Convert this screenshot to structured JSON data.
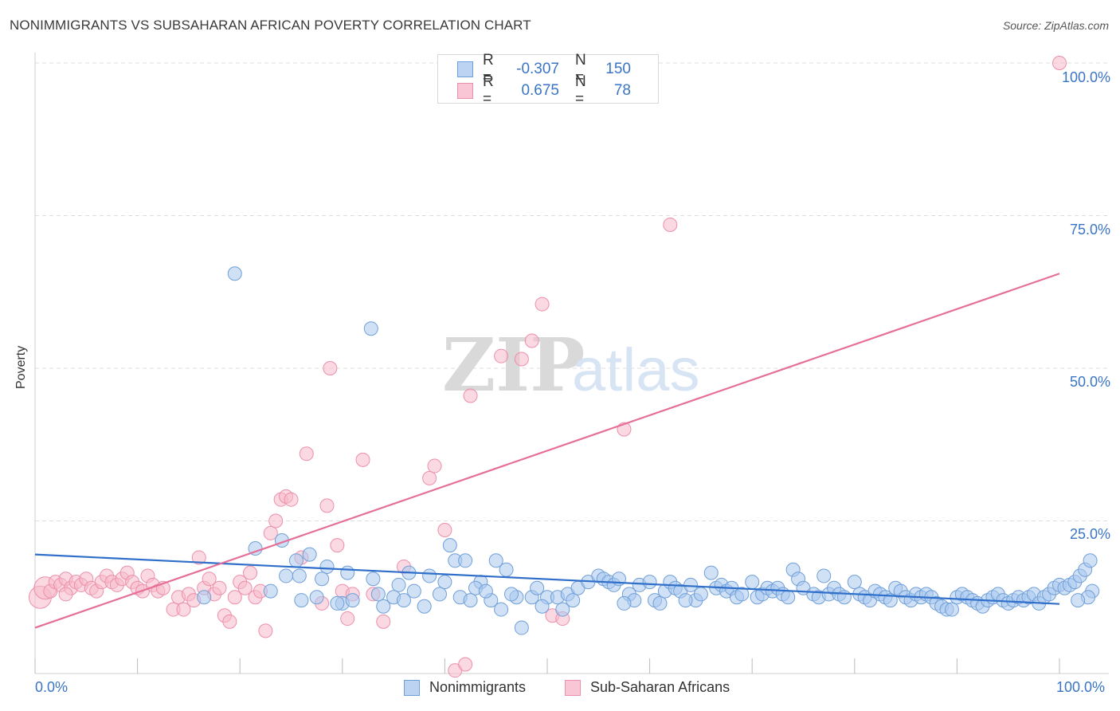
{
  "title": "NONIMMIGRANTS VS SUBSAHARAN AFRICAN POVERTY CORRELATION CHART",
  "source": "Source: ZipAtlas.com",
  "watermark": {
    "zip": "ZIP",
    "atlas": "atlas"
  },
  "colors": {
    "blue_fill": "#a9c8ef",
    "blue_stroke": "#6f9fd8",
    "blue_line": "#2f6fca",
    "pink_fill": "#f7b9cb",
    "pink_stroke": "#ec8fab",
    "pink_line": "#e56f98",
    "axis_text": "#3a75c4",
    "grid": "#dddddd"
  },
  "legend": {
    "rows": [
      {
        "r_label": "R =",
        "r_value": "-0.307",
        "n_label": "N =",
        "n_value": "150"
      },
      {
        "r_label": "R =",
        "r_value": "0.675",
        "n_label": "N =",
        "n_value": "78"
      }
    ]
  },
  "bottom_legend": {
    "series1": "Nonimmigrants",
    "series2": "Sub-Saharan Africans"
  },
  "axes": {
    "x_min_label": "0.0%",
    "x_max_label": "100.0%",
    "y_ticks": [
      "100.0%",
      "75.0%",
      "50.0%",
      "25.0%"
    ],
    "ylabel": "Poverty"
  },
  "chart_data": {
    "type": "scatter",
    "title": "NONIMMIGRANTS VS SUBSAHARAN AFRICAN POVERTY CORRELATION CHART",
    "xlabel": "",
    "ylabel": "Poverty",
    "xlim": [
      0,
      100
    ],
    "ylim": [
      0,
      100
    ],
    "grid": true,
    "legend_position": "bottom",
    "series": [
      {
        "name": "Nonimmigrants",
        "r": -0.307,
        "n": 150,
        "trend": [
          [
            0,
            19.5
          ],
          [
            100,
            11.4
          ]
        ],
        "points": [
          [
            19.5,
            65.5
          ],
          [
            32.8,
            56.5
          ],
          [
            21.5,
            20.5
          ],
          [
            24.1,
            21.8
          ],
          [
            25.5,
            18.5
          ],
          [
            26.8,
            19.5
          ],
          [
            28.5,
            17.5
          ],
          [
            24.5,
            16.0
          ],
          [
            25.8,
            16.0
          ],
          [
            28.0,
            15.5
          ],
          [
            30.5,
            16.5
          ],
          [
            33.0,
            15.5
          ],
          [
            35.5,
            14.5
          ],
          [
            36.5,
            16.5
          ],
          [
            38.5,
            16.0
          ],
          [
            40.0,
            15.0
          ],
          [
            41.0,
            18.5
          ],
          [
            42.0,
            18.5
          ],
          [
            43.5,
            15.0
          ],
          [
            45.0,
            18.5
          ],
          [
            46.0,
            17.0
          ],
          [
            40.5,
            21.0
          ],
          [
            16.5,
            12.5
          ],
          [
            27.5,
            12.5
          ],
          [
            30.0,
            11.5
          ],
          [
            34.0,
            11.0
          ],
          [
            35.0,
            12.5
          ],
          [
            36.0,
            12.0
          ],
          [
            38.0,
            11.0
          ],
          [
            39.5,
            13.0
          ],
          [
            41.5,
            12.5
          ],
          [
            43.0,
            14.0
          ],
          [
            44.5,
            12.0
          ],
          [
            45.5,
            10.5
          ],
          [
            47.0,
            12.5
          ],
          [
            47.5,
            7.5
          ],
          [
            48.5,
            12.5
          ],
          [
            49.0,
            14.0
          ],
          [
            50.0,
            12.5
          ],
          [
            51.0,
            12.5
          ],
          [
            51.5,
            10.5
          ],
          [
            52.0,
            13.0
          ],
          [
            53.0,
            14.0
          ],
          [
            54.0,
            15.0
          ],
          [
            55.0,
            16.0
          ],
          [
            55.5,
            15.5
          ],
          [
            56.0,
            15.0
          ],
          [
            56.5,
            14.5
          ],
          [
            57.0,
            15.5
          ],
          [
            58.0,
            13.0
          ],
          [
            58.5,
            12.0
          ],
          [
            59.0,
            14.5
          ],
          [
            60.0,
            15.0
          ],
          [
            60.5,
            12.0
          ],
          [
            61.0,
            11.5
          ],
          [
            61.5,
            13.5
          ],
          [
            62.0,
            15.0
          ],
          [
            62.5,
            14.0
          ],
          [
            63.0,
            13.5
          ],
          [
            64.0,
            14.5
          ],
          [
            64.5,
            12.0
          ],
          [
            65.0,
            13.0
          ],
          [
            66.0,
            16.5
          ],
          [
            66.5,
            14.0
          ],
          [
            67.0,
            14.5
          ],
          [
            67.5,
            13.5
          ],
          [
            68.0,
            14.0
          ],
          [
            68.5,
            12.5
          ],
          [
            69.0,
            13.0
          ],
          [
            70.0,
            15.0
          ],
          [
            70.5,
            12.5
          ],
          [
            71.0,
            13.0
          ],
          [
            71.5,
            14.0
          ],
          [
            72.0,
            13.5
          ],
          [
            72.5,
            14.0
          ],
          [
            73.0,
            13.0
          ],
          [
            74.0,
            17.0
          ],
          [
            74.5,
            15.5
          ],
          [
            75.0,
            14.0
          ],
          [
            76.0,
            13.0
          ],
          [
            76.5,
            12.5
          ],
          [
            77.0,
            16.0
          ],
          [
            77.5,
            13.0
          ],
          [
            78.0,
            14.0
          ],
          [
            78.5,
            13.0
          ],
          [
            79.0,
            12.5
          ],
          [
            80.0,
            15.0
          ],
          [
            80.5,
            13.0
          ],
          [
            81.0,
            12.5
          ],
          [
            81.5,
            12.0
          ],
          [
            82.0,
            13.5
          ],
          [
            82.5,
            13.0
          ],
          [
            83.0,
            12.5
          ],
          [
            83.5,
            12.0
          ],
          [
            84.0,
            14.0
          ],
          [
            84.5,
            13.5
          ],
          [
            85.0,
            12.5
          ],
          [
            85.5,
            12.0
          ],
          [
            86.0,
            13.0
          ],
          [
            86.5,
            12.5
          ],
          [
            87.0,
            13.0
          ],
          [
            87.5,
            12.5
          ],
          [
            88.0,
            11.5
          ],
          [
            88.5,
            11.0
          ],
          [
            89.0,
            10.5
          ],
          [
            89.5,
            10.5
          ],
          [
            90.0,
            12.5
          ],
          [
            90.5,
            13.0
          ],
          [
            91.0,
            12.5
          ],
          [
            91.5,
            12.0
          ],
          [
            92.0,
            11.5
          ],
          [
            92.5,
            11.0
          ],
          [
            93.0,
            12.0
          ],
          [
            93.5,
            12.5
          ],
          [
            94.0,
            13.0
          ],
          [
            94.5,
            12.0
          ],
          [
            95.0,
            11.5
          ],
          [
            95.5,
            12.0
          ],
          [
            96.0,
            12.5
          ],
          [
            96.5,
            12.0
          ],
          [
            97.0,
            12.5
          ],
          [
            97.5,
            13.0
          ],
          [
            98.0,
            11.5
          ],
          [
            98.5,
            12.5
          ],
          [
            99.0,
            13.0
          ],
          [
            99.5,
            14.0
          ],
          [
            100.0,
            14.5
          ],
          [
            100.5,
            14.0
          ],
          [
            101.0,
            14.5
          ],
          [
            101.5,
            15.0
          ],
          [
            102.0,
            16.0
          ],
          [
            102.5,
            17.0
          ],
          [
            103.0,
            18.5
          ],
          [
            103.2,
            13.5
          ],
          [
            102.8,
            12.5
          ],
          [
            101.8,
            12.0
          ],
          [
            73.5,
            12.5
          ],
          [
            63.5,
            12.0
          ],
          [
            57.5,
            11.5
          ],
          [
            52.5,
            12.0
          ],
          [
            49.5,
            11.0
          ],
          [
            46.5,
            13.0
          ],
          [
            44.0,
            13.5
          ],
          [
            42.5,
            12.0
          ],
          [
            37.0,
            13.5
          ],
          [
            33.5,
            13.0
          ],
          [
            31.0,
            12.0
          ],
          [
            29.5,
            11.5
          ],
          [
            26.0,
            12.0
          ],
          [
            23.0,
            13.5
          ]
        ]
      },
      {
        "name": "Sub-Saharan Africans",
        "r": 0.675,
        "n": 78,
        "trend": [
          [
            0,
            7.5
          ],
          [
            100,
            65.5
          ]
        ],
        "points": [
          [
            0.5,
            12.5
          ],
          [
            1.0,
            14.0
          ],
          [
            1.5,
            13.5
          ],
          [
            2.0,
            15.0
          ],
          [
            2.5,
            14.5
          ],
          [
            3.0,
            15.5
          ],
          [
            3.5,
            14.0
          ],
          [
            4.0,
            15.0
          ],
          [
            4.5,
            14.5
          ],
          [
            5.0,
            15.5
          ],
          [
            5.5,
            14.0
          ],
          [
            6.0,
            13.5
          ],
          [
            6.5,
            15.0
          ],
          [
            7.0,
            16.0
          ],
          [
            7.5,
            15.0
          ],
          [
            8.0,
            14.5
          ],
          [
            8.5,
            15.5
          ],
          [
            9.0,
            16.5
          ],
          [
            9.5,
            15.0
          ],
          [
            10.0,
            14.0
          ],
          [
            10.5,
            13.5
          ],
          [
            11.0,
            16.0
          ],
          [
            11.5,
            14.5
          ],
          [
            12.0,
            13.5
          ],
          [
            12.5,
            14.0
          ],
          [
            13.5,
            10.5
          ],
          [
            14.0,
            12.5
          ],
          [
            14.5,
            10.5
          ],
          [
            15.0,
            13.0
          ],
          [
            15.5,
            12.0
          ],
          [
            16.0,
            19.0
          ],
          [
            16.5,
            14.0
          ],
          [
            17.0,
            15.5
          ],
          [
            17.5,
            13.0
          ],
          [
            18.0,
            14.0
          ],
          [
            18.5,
            9.5
          ],
          [
            19.0,
            8.5
          ],
          [
            19.5,
            12.5
          ],
          [
            20.0,
            15.0
          ],
          [
            20.5,
            14.0
          ],
          [
            21.0,
            16.5
          ],
          [
            21.5,
            12.5
          ],
          [
            22.0,
            13.5
          ],
          [
            22.5,
            7.0
          ],
          [
            23.0,
            23.0
          ],
          [
            23.5,
            25.0
          ],
          [
            24.0,
            28.5
          ],
          [
            24.5,
            29.0
          ],
          [
            25.0,
            28.5
          ],
          [
            26.0,
            19.0
          ],
          [
            26.5,
            36.0
          ],
          [
            28.0,
            11.5
          ],
          [
            28.5,
            27.5
          ],
          [
            28.8,
            50.0
          ],
          [
            29.5,
            21.0
          ],
          [
            30.0,
            13.5
          ],
          [
            30.5,
            9.0
          ],
          [
            31.0,
            13.0
          ],
          [
            32.0,
            35.0
          ],
          [
            33.0,
            13.0
          ],
          [
            34.0,
            8.5
          ],
          [
            36.0,
            17.5
          ],
          [
            38.5,
            32.0
          ],
          [
            39.0,
            34.0
          ],
          [
            40.0,
            23.5
          ],
          [
            41.0,
            0.5
          ],
          [
            42.0,
            1.5
          ],
          [
            42.5,
            45.5
          ],
          [
            45.5,
            52.0
          ],
          [
            47.5,
            51.5
          ],
          [
            48.5,
            54.5
          ],
          [
            49.5,
            60.5
          ],
          [
            50.5,
            9.5
          ],
          [
            51.5,
            9.0
          ],
          [
            57.5,
            40.0
          ],
          [
            62.0,
            73.5
          ],
          [
            100.0,
            100.0
          ],
          [
            3.0,
            13.0
          ]
        ]
      }
    ]
  }
}
